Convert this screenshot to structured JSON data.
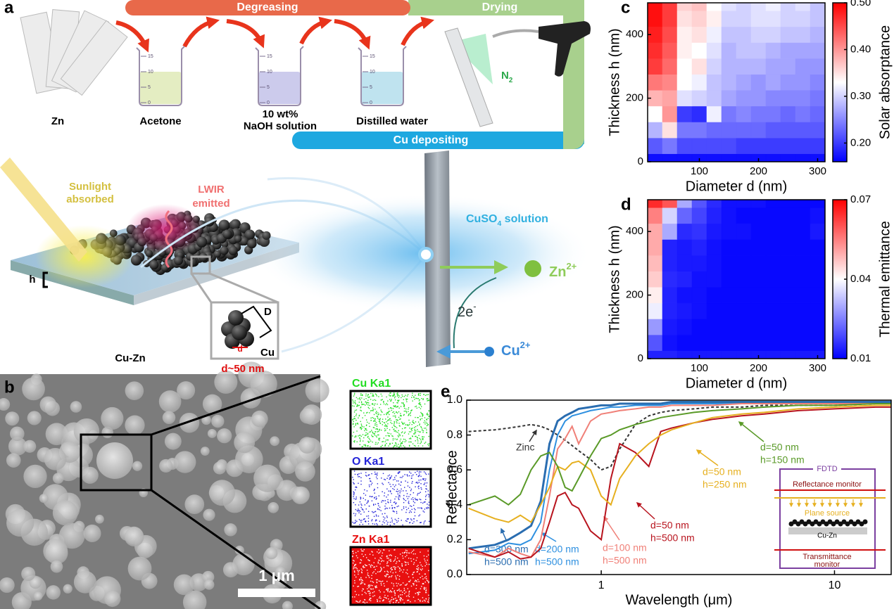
{
  "panel_labels": [
    "a",
    "b",
    "c",
    "d",
    "e"
  ],
  "process": {
    "degreasing": "Degreasing",
    "drying": "Drying",
    "cu_depositing": "Cu depositing",
    "beaker_scale": [
      "15",
      "10",
      "5",
      "0"
    ],
    "zn": "Zn",
    "acetone": "Acetone",
    "naoh": [
      "10 wt%",
      "NaOH solution"
    ],
    "water": "Distilled water",
    "n2": {
      "base": "N",
      "sub": "2"
    }
  },
  "structure": {
    "sunlight": [
      "Sunlight",
      "absorbed"
    ],
    "lwir": [
      "LWIR",
      "emitted"
    ],
    "h": "h",
    "D": "D",
    "d": "d",
    "cu": "Cu",
    "cu_zn": "Cu-Zn",
    "size": "d~50 nm"
  },
  "deposition": {
    "solution": {
      "base": "CuSO",
      "sub": "4",
      "rest": " solution"
    },
    "zn_ion": {
      "base": "Zn",
      "sup": "2+"
    },
    "electrons": {
      "base": "2e",
      "sup": "-"
    },
    "cu_ion": {
      "base": "Cu",
      "sup": "2+"
    }
  },
  "sem": {
    "scale_bar": "1 μm",
    "maps": [
      {
        "name": "Cu Ka1",
        "color": "#22dd22"
      },
      {
        "name": "O Ka1",
        "color": "#2424d8"
      },
      {
        "name": "Zn Ka1",
        "color": "#e81010"
      }
    ]
  },
  "chart_data": [
    {
      "type": "heatmap",
      "x_label": "Diameter d (nm)",
      "y_label": "Thickness h (nm)",
      "colorbar_label": "Solar absorptance",
      "x": [
        25,
        50,
        75,
        100,
        125,
        150,
        175,
        200,
        225,
        250,
        275,
        300
      ],
      "y": [
        0,
        50,
        100,
        150,
        200,
        250,
        300,
        350,
        400,
        450,
        500
      ],
      "values": [
        [
          0.17,
          0.17,
          0.17,
          0.17,
          0.17,
          0.17,
          0.17,
          0.17,
          0.17,
          0.17,
          0.17,
          0.17
        ],
        [
          0.22,
          0.24,
          0.21,
          0.21,
          0.21,
          0.21,
          0.2,
          0.2,
          0.2,
          0.2,
          0.2,
          0.2
        ],
        [
          0.28,
          0.35,
          0.24,
          0.24,
          0.23,
          0.23,
          0.23,
          0.23,
          0.22,
          0.22,
          0.22,
          0.22
        ],
        [
          0.33,
          0.4,
          0.2,
          0.19,
          0.32,
          0.24,
          0.25,
          0.24,
          0.24,
          0.23,
          0.24,
          0.23
        ],
        [
          0.38,
          0.39,
          0.31,
          0.3,
          0.29,
          0.27,
          0.26,
          0.26,
          0.25,
          0.25,
          0.25,
          0.24
        ],
        [
          0.42,
          0.41,
          0.33,
          0.32,
          0.29,
          0.28,
          0.27,
          0.26,
          0.27,
          0.26,
          0.26,
          0.25
        ],
        [
          0.46,
          0.43,
          0.33,
          0.35,
          0.3,
          0.28,
          0.28,
          0.28,
          0.27,
          0.27,
          0.26,
          0.26
        ],
        [
          0.47,
          0.44,
          0.34,
          0.33,
          0.31,
          0.28,
          0.29,
          0.29,
          0.28,
          0.27,
          0.27,
          0.27
        ],
        [
          0.48,
          0.45,
          0.34,
          0.35,
          0.32,
          0.29,
          0.29,
          0.3,
          0.3,
          0.29,
          0.29,
          0.28
        ],
        [
          0.49,
          0.46,
          0.35,
          0.36,
          0.34,
          0.3,
          0.3,
          0.31,
          0.31,
          0.3,
          0.3,
          0.29
        ],
        [
          0.49,
          0.46,
          0.36,
          0.37,
          0.33,
          0.31,
          0.3,
          0.31,
          0.32,
          0.3,
          0.31,
          0.29
        ]
      ],
      "xlim": [
        12.5,
        312.5
      ],
      "ylim": [
        0,
        500
      ],
      "xticks": [
        100,
        200,
        300
      ],
      "yticks": [
        0,
        200,
        400
      ],
      "zlim": [
        0.16,
        0.5
      ],
      "zticks": [
        {
          "value": 0.2,
          "label": "0.20"
        },
        {
          "value": 0.3,
          "label": "0.30"
        },
        {
          "value": 0.4,
          "label": "0.40"
        },
        {
          "value": 0.5,
          "label": "0.50"
        }
      ],
      "colormap": [
        "#0000ff",
        "#ffffff",
        "#ff0000"
      ]
    },
    {
      "type": "heatmap",
      "x_label": "Diameter d (nm)",
      "y_label": "Thickness h (nm)",
      "colorbar_label": "Thermal emittance",
      "x": [
        25,
        50,
        75,
        100,
        125,
        150,
        175,
        200,
        225,
        250,
        275,
        300
      ],
      "y": [
        0,
        50,
        100,
        150,
        200,
        250,
        300,
        350,
        400,
        450,
        500
      ],
      "values": [
        [
          0.014,
          0.014,
          0.013,
          0.013,
          0.013,
          0.013,
          0.013,
          0.013,
          0.013,
          0.013,
          0.013,
          0.013
        ],
        [
          0.02,
          0.012,
          0.011,
          0.011,
          0.011,
          0.011,
          0.011,
          0.011,
          0.011,
          0.011,
          0.011,
          0.011
        ],
        [
          0.028,
          0.013,
          0.012,
          0.011,
          0.011,
          0.011,
          0.011,
          0.011,
          0.011,
          0.011,
          0.011,
          0.011
        ],
        [
          0.038,
          0.014,
          0.013,
          0.012,
          0.011,
          0.011,
          0.011,
          0.011,
          0.011,
          0.011,
          0.011,
          0.011
        ],
        [
          0.042,
          0.014,
          0.012,
          0.012,
          0.011,
          0.011,
          0.011,
          0.011,
          0.011,
          0.011,
          0.011,
          0.011
        ],
        [
          0.046,
          0.015,
          0.014,
          0.012,
          0.012,
          0.011,
          0.011,
          0.011,
          0.011,
          0.011,
          0.011,
          0.011
        ],
        [
          0.048,
          0.014,
          0.013,
          0.013,
          0.012,
          0.011,
          0.011,
          0.011,
          0.011,
          0.011,
          0.011,
          0.011
        ],
        [
          0.05,
          0.014,
          0.013,
          0.014,
          0.012,
          0.011,
          0.011,
          0.011,
          0.011,
          0.011,
          0.011,
          0.011
        ],
        [
          0.05,
          0.03,
          0.015,
          0.016,
          0.013,
          0.012,
          0.012,
          0.011,
          0.011,
          0.011,
          0.011,
          0.013
        ],
        [
          0.055,
          0.035,
          0.022,
          0.018,
          0.014,
          0.012,
          0.011,
          0.011,
          0.011,
          0.011,
          0.011,
          0.012
        ],
        [
          0.065,
          0.06,
          0.03,
          0.02,
          0.015,
          0.012,
          0.012,
          0.012,
          0.011,
          0.011,
          0.011,
          0.011
        ]
      ],
      "xlim": [
        12.5,
        312.5
      ],
      "ylim": [
        0,
        500
      ],
      "xticks": [
        100,
        200,
        300
      ],
      "yticks": [
        0,
        200,
        400
      ],
      "zlim": [
        0.01,
        0.07
      ],
      "zticks": [
        0.01,
        0.04,
        0.07
      ],
      "colormap": [
        "#0000ff",
        "#ffffff",
        "#ff0000"
      ]
    },
    {
      "type": "line",
      "x_label": "Wavelength (μm)",
      "y_label": "Reflectance",
      "xscale": "log",
      "x": [
        0.27,
        0.35,
        0.4,
        0.45,
        0.5,
        0.55,
        0.6,
        0.65,
        0.7,
        0.75,
        0.8,
        0.9,
        1.0,
        1.1,
        1.2,
        1.4,
        1.6,
        1.8,
        2,
        2.5,
        3,
        4,
        5,
        7,
        10,
        15,
        17.5
      ],
      "series": [
        {
          "annotation": [
            "Zinc"
          ],
          "color": "#333333",
          "dashed": true,
          "values": [
            0.82,
            0.83,
            0.84,
            0.85,
            0.86,
            0.85,
            0.83,
            0.8,
            0.77,
            0.74,
            0.71,
            0.66,
            0.6,
            0.62,
            0.72,
            0.86,
            0.91,
            0.93,
            0.94,
            0.95,
            0.96,
            0.96,
            0.97,
            0.97,
            0.97,
            0.98,
            0.98
          ]
        },
        {
          "annotation": [
            "d=300 nm",
            "h=500 nm"
          ],
          "color": "#2a6db0",
          "width": 3,
          "values": [
            0.15,
            0.17,
            0.2,
            0.24,
            0.28,
            0.42,
            0.75,
            0.88,
            0.91,
            0.93,
            0.95,
            0.96,
            0.97,
            0.97,
            0.98,
            0.98,
            0.98,
            0.98,
            0.99,
            0.99,
            0.99,
            0.99,
            0.99,
            0.99,
            0.99,
            0.99,
            0.99
          ]
        },
        {
          "annotation": [
            "d=200 nm",
            "h=500 nm"
          ],
          "color": "#2e90e0",
          "values": [
            0.12,
            0.14,
            0.18,
            0.17,
            0.2,
            0.3,
            0.6,
            0.8,
            0.88,
            0.91,
            0.92,
            0.94,
            0.95,
            0.96,
            0.96,
            0.97,
            0.97,
            0.97,
            0.98,
            0.98,
            0.98,
            0.98,
            0.98,
            0.98,
            0.98,
            0.98,
            0.98
          ]
        },
        {
          "annotation": [
            "d=100 nm",
            "h=500 nm"
          ],
          "color": "#f08078",
          "values": [
            0.13,
            0.1,
            0.15,
            0.12,
            0.1,
            0.2,
            0.45,
            0.72,
            0.78,
            0.85,
            0.75,
            0.88,
            0.92,
            0.93,
            0.94,
            0.95,
            0.96,
            0.96,
            0.97,
            0.97,
            0.97,
            0.98,
            0.98,
            0.98,
            0.98,
            0.98,
            0.98
          ]
        },
        {
          "annotation": [
            "d=50 nm",
            "h=500 nm"
          ],
          "color": "#b8141e",
          "values": [
            0.15,
            0.1,
            0.13,
            0.09,
            0.1,
            0.15,
            0.3,
            0.45,
            0.47,
            0.4,
            0.38,
            0.25,
            0.2,
            0.55,
            0.75,
            0.7,
            0.62,
            0.82,
            0.84,
            0.87,
            0.89,
            0.91,
            0.92,
            0.94,
            0.95,
            0.96,
            0.96
          ]
        },
        {
          "annotation": [
            "d=50 nm",
            "h=250 nm"
          ],
          "color": "#e6b020",
          "values": [
            0.38,
            0.32,
            0.3,
            0.34,
            0.3,
            0.4,
            0.5,
            0.62,
            0.6,
            0.64,
            0.65,
            0.6,
            0.45,
            0.4,
            0.55,
            0.68,
            0.75,
            0.8,
            0.83,
            0.87,
            0.9,
            0.92,
            0.93,
            0.95,
            0.96,
            0.97,
            0.97
          ]
        },
        {
          "annotation": [
            "d=50 nm",
            "h=150 nm"
          ],
          "color": "#5a9a28",
          "values": [
            0.4,
            0.45,
            0.4,
            0.46,
            0.6,
            0.68,
            0.7,
            0.62,
            0.5,
            0.48,
            0.55,
            0.68,
            0.78,
            0.8,
            0.83,
            0.86,
            0.88,
            0.9,
            0.91,
            0.93,
            0.94,
            0.95,
            0.96,
            0.97,
            0.97,
            0.98,
            0.98
          ]
        }
      ],
      "xlim": [
        0.265,
        17.5
      ],
      "ylim": [
        0,
        1.0
      ],
      "xticks": [
        1,
        10
      ],
      "yticks": [
        {
          "value": 0,
          "label": "0.0"
        },
        {
          "value": 0.2,
          "label": "0.2"
        },
        {
          "value": 0.4,
          "label": "0.4"
        },
        {
          "value": 0.6,
          "label": "0.6"
        },
        {
          "value": 0.8,
          "label": "0.8"
        },
        {
          "value": 1.0,
          "label": "1.0"
        }
      ],
      "inset": {
        "title": "FDTD",
        "reflectance": "Reflectance monitor",
        "source": "Plane source",
        "sample": "Cu-Zn",
        "transmittance": [
          "Transmittance",
          "monitor"
        ]
      }
    }
  ]
}
